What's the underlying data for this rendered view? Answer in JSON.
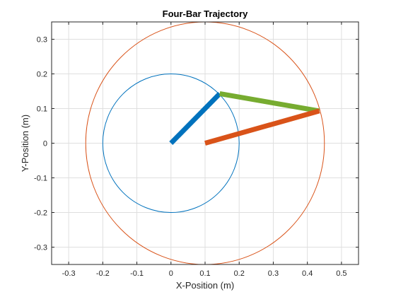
{
  "chart_data": {
    "type": "line",
    "title": "Four-Bar Trajectory",
    "xlabel": "X-Position (m)",
    "ylabel": "Y-Position (m)",
    "xlim": [
      -0.35,
      0.55
    ],
    "ylim": [
      -0.35,
      0.35
    ],
    "grid": true,
    "xticks": [
      -0.3,
      -0.2,
      -0.1,
      0,
      0.1,
      0.2,
      0.3,
      0.4,
      0.5
    ],
    "yticks": [
      -0.3,
      -0.2,
      -0.1,
      0,
      0.1,
      0.2,
      0.3
    ],
    "xtick_labels": [
      "-0.3",
      "-0.2",
      "-0.1",
      "0",
      "0.1",
      "0.2",
      "0.3",
      "0.4",
      "0.5"
    ],
    "ytick_labels": [
      "-0.3",
      "-0.2",
      "-0.1",
      "0",
      "0.1",
      "0.2",
      "0.3"
    ],
    "circles": [
      {
        "cx": 0,
        "cy": 0,
        "r": 0.2,
        "color": "#0072BD"
      },
      {
        "cx": 0.1,
        "cy": 0,
        "r": 0.35,
        "color": "#D95319"
      }
    ],
    "links": [
      {
        "x": [
          0,
          0.143
        ],
        "y": [
          0,
          0.143
        ],
        "color": "#0072BD"
      },
      {
        "x": [
          0.143,
          0.435
        ],
        "y": [
          0.143,
          0.093
        ],
        "color": "#77AC30"
      },
      {
        "x": [
          0.1,
          0.435
        ],
        "y": [
          0,
          0.093
        ],
        "color": "#D95319"
      }
    ]
  }
}
